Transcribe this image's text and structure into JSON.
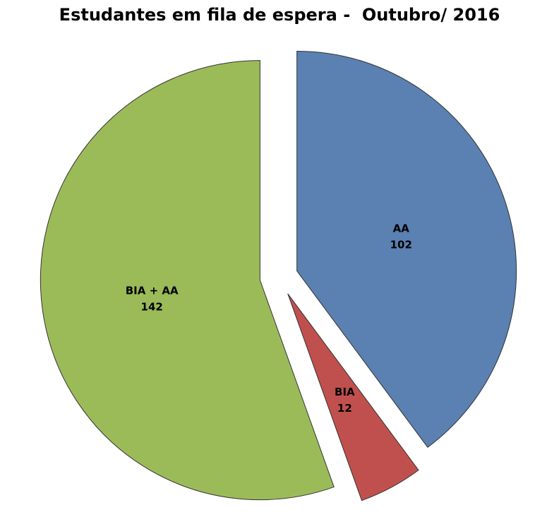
{
  "chart_data": {
    "type": "pie",
    "title": "Estudantes em fila de espera -  Outubro/ 2016",
    "categories": [
      "AA",
      "BIA",
      "BIA + AA"
    ],
    "values": [
      102,
      12,
      142
    ],
    "colors": [
      "#5b80b2",
      "#c0504d",
      "#9bbb59"
    ]
  }
}
